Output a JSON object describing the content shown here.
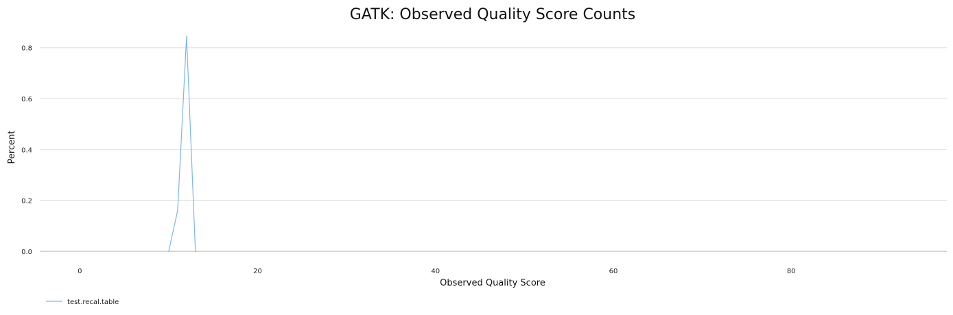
{
  "chart_data": {
    "type": "line",
    "title": "GATK: Observed Quality Score Counts",
    "xlabel": "Observed Quality Score",
    "ylabel": "Percent",
    "xlim": [
      -4.5,
      97.5
    ],
    "ylim": [
      0,
      0.88
    ],
    "x_ticks": [
      0,
      20,
      40,
      60,
      80
    ],
    "x_tick_labels": [
      "0",
      "20",
      "40",
      "60",
      "80"
    ],
    "y_ticks": [
      0,
      0.2,
      0.4,
      0.6,
      0.8
    ],
    "y_tick_labels": [
      "0.0",
      "0.2",
      "0.4",
      "0.6",
      "0.8"
    ],
    "grid": true,
    "legend_position": "bottom-left",
    "series": [
      {
        "name": "test.recal.table",
        "color": "#7cb5ec",
        "x": [
          10,
          11,
          12,
          13
        ],
        "y": [
          0,
          0.16,
          0.845,
          0
        ]
      }
    ]
  }
}
